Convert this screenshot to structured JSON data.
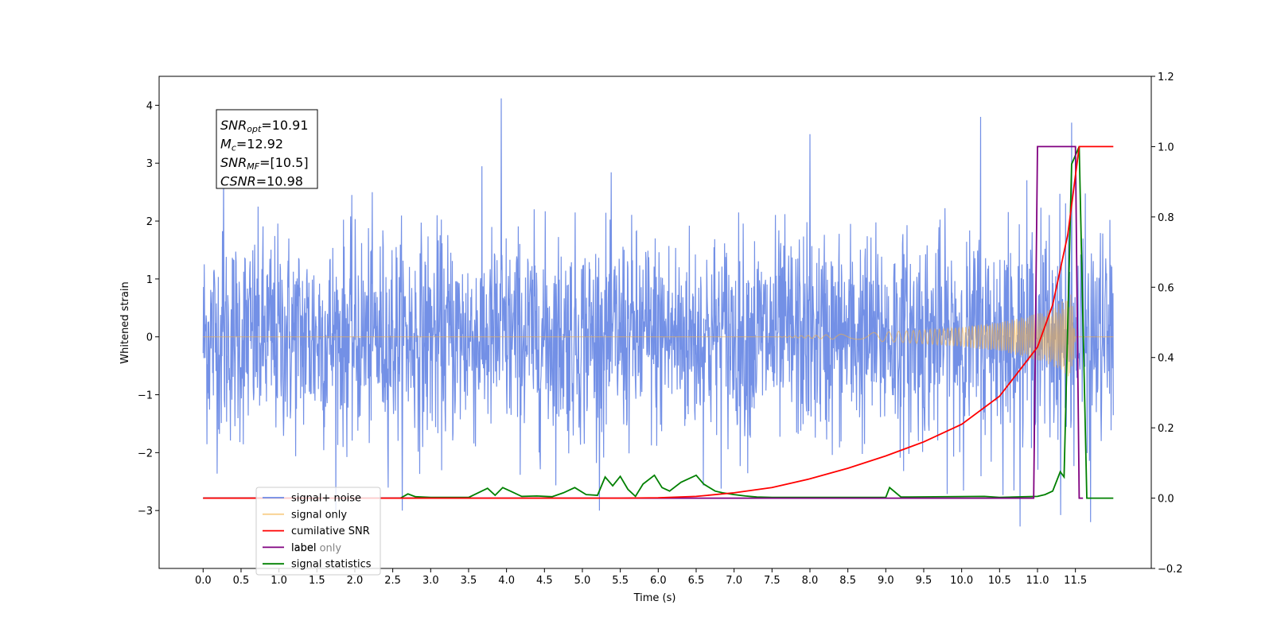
{
  "chart_data": {
    "type": "line",
    "xlabel": "Time (s)",
    "ylabel": "Whitened strain",
    "xlim": [
      -0.58,
      12.5
    ],
    "ylim_left": [
      -4.0,
      4.5
    ],
    "ylim_right": [
      -0.2,
      1.2
    ],
    "x_ticks": [
      "0.0",
      "0.5",
      "1.0",
      "1.5",
      "2.0",
      "2.5",
      "3.0",
      "3.5",
      "4.0",
      "4.5",
      "5.0",
      "5.5",
      "6.0",
      "6.5",
      "7.0",
      "7.5",
      "8.0",
      "8.5",
      "9.0",
      "9.5",
      "10.0",
      "10.5",
      "11.0",
      "11.5"
    ],
    "y_ticks_left": [
      "−3",
      "−2",
      "−1",
      "0",
      "1",
      "2",
      "3",
      "4"
    ],
    "y_ticks_right": [
      "−0.2",
      "0.0",
      "0.2",
      "0.4",
      "0.6",
      "0.8",
      "1.0",
      "1.2"
    ],
    "legend_location": "lower-left",
    "series": [
      {
        "name": "signal+ noise",
        "axis": "left",
        "color": "#6b8ae5",
        "description": "white noise, roughly std 0.9, range about -3.2 to 4.1, spanning 0.0 to 12.0 s",
        "peaks": [
          [
            3.93,
            4.12
          ],
          [
            0.27,
            3.0
          ],
          [
            10.25,
            3.8
          ],
          [
            8.0,
            3.5
          ],
          [
            11.45,
            3.7
          ],
          [
            11.7,
            -3.2
          ]
        ]
      },
      {
        "name": "signal only",
        "axis": "left",
        "color": "#f5b041",
        "description": "chirp with amplitude growing from ~0 at 7.5 s to ~0.75 near 11.45 s, then zero",
        "amplitude": {
          "x": [
            0.0,
            7.5,
            8.5,
            9.5,
            10.0,
            10.5,
            11.0,
            11.2,
            11.4,
            11.45,
            11.5,
            12.0
          ],
          "y": [
            0.0,
            0.0,
            0.05,
            0.12,
            0.17,
            0.25,
            0.4,
            0.5,
            0.68,
            0.75,
            0.0,
            0.0
          ]
        }
      },
      {
        "name": "cumilative SNR",
        "axis": "right",
        "color": "#ff0000",
        "x": [
          0.0,
          5.5,
          6.0,
          6.5,
          7.0,
          7.5,
          8.0,
          8.5,
          9.0,
          9.5,
          10.0,
          10.5,
          11.0,
          11.2,
          11.4,
          11.55,
          12.0
        ],
        "y": [
          0.0,
          0.0,
          0.001,
          0.005,
          0.015,
          0.03,
          0.055,
          0.085,
          0.12,
          0.16,
          0.21,
          0.29,
          0.43,
          0.55,
          0.75,
          1.0,
          1.0
        ]
      },
      {
        "name": "label",
        "axis": "right",
        "color": "#800080",
        "x": [
          0.0,
          10.95,
          11.0,
          11.5,
          11.55,
          11.6
        ],
        "y": [
          0.0,
          0.0,
          1.0,
          1.0,
          0.0,
          0.0
        ]
      },
      {
        "name": "signal statistics",
        "axis": "right",
        "color": "#008000",
        "x": [
          0.0,
          2.6,
          2.7,
          2.8,
          3.0,
          3.5,
          3.75,
          3.85,
          3.95,
          4.05,
          4.2,
          4.4,
          4.6,
          4.75,
          4.9,
          5.05,
          5.2,
          5.3,
          5.4,
          5.5,
          5.6,
          5.7,
          5.8,
          5.95,
          6.05,
          6.15,
          6.3,
          6.5,
          6.6,
          6.75,
          6.85,
          7.0,
          7.15,
          7.3,
          7.5,
          9.0,
          9.05,
          9.2,
          10.3,
          10.5,
          11.0,
          11.1,
          11.2,
          11.3,
          11.35,
          11.45,
          11.55,
          11.65,
          12.0
        ],
        "y": [
          0.0,
          0.0,
          0.012,
          0.004,
          0.002,
          0.002,
          0.028,
          0.008,
          0.03,
          0.02,
          0.005,
          0.006,
          0.004,
          0.015,
          0.03,
          0.01,
          0.008,
          0.06,
          0.035,
          0.062,
          0.025,
          0.005,
          0.04,
          0.065,
          0.03,
          0.02,
          0.045,
          0.065,
          0.04,
          0.02,
          0.015,
          0.01,
          0.006,
          0.003,
          0.002,
          0.002,
          0.03,
          0.003,
          0.005,
          0.002,
          0.005,
          0.01,
          0.02,
          0.075,
          0.06,
          0.95,
          1.0,
          0.0,
          0.0
        ]
      },
      {
        "name": "label only",
        "axis": "right",
        "color": "#800080",
        "description": "legend entry hidden behind the label line"
      }
    ],
    "annotation": {
      "lines": [
        {
          "main": "SNR",
          "sub": "opt",
          "value": "=10.91"
        },
        {
          "main": "M",
          "sub": "c",
          "value": "=12.92"
        },
        {
          "main": "SNR",
          "sub": "MF",
          "value": "=[10.5]"
        },
        {
          "main": "CSNR",
          "sub": "",
          "value": "=10.98"
        }
      ]
    }
  }
}
